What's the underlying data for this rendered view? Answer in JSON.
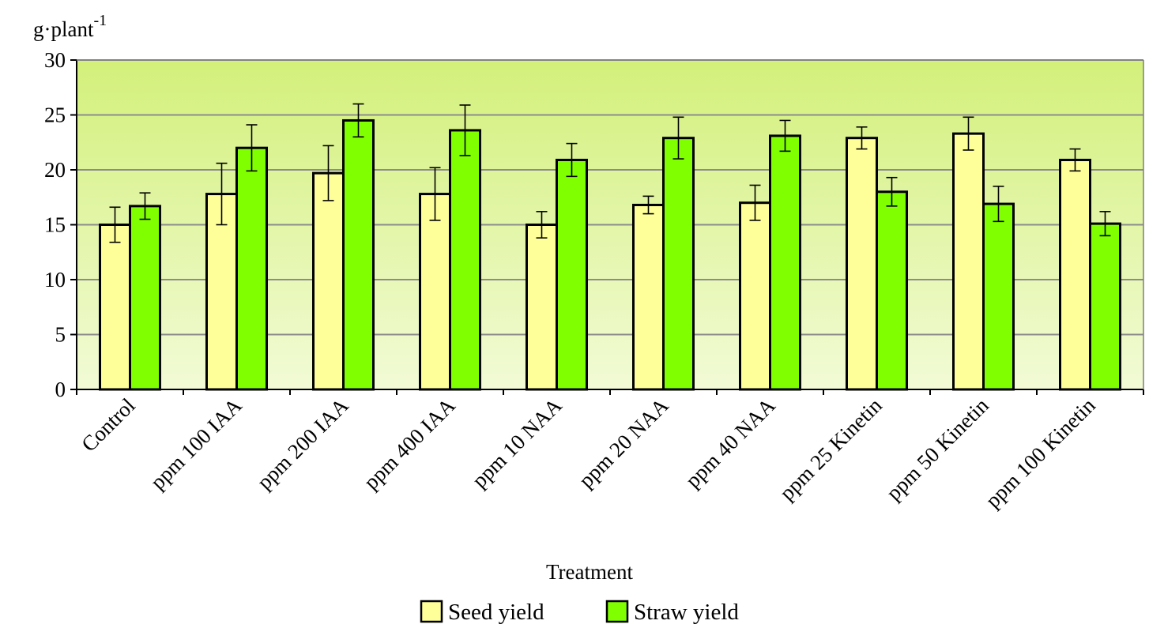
{
  "chart_data": {
    "type": "bar",
    "ylabel": "g·plant",
    "ylabel_sup": "-1",
    "xlabel": "Treatment",
    "ylim": [
      0,
      30
    ],
    "yticks": [
      0,
      5,
      10,
      15,
      20,
      25,
      30
    ],
    "grid": true,
    "legend": "bottom",
    "categories": [
      "Control",
      "ppm 100 IAA",
      "ppm 200 IAA",
      "ppm 400 IAA",
      "ppm 10 NAA",
      "ppm 20 NAA",
      "ppm 40 NAA",
      "ppm 25 Kinetin",
      "ppm 50 Kinetin",
      "ppm 100 Kinetin"
    ],
    "series": [
      {
        "name": "Seed yield",
        "color": "#ffff99",
        "values": [
          15.0,
          17.8,
          19.7,
          17.8,
          15.0,
          16.8,
          17.0,
          22.9,
          23.3,
          20.9
        ],
        "errors": [
          1.6,
          2.8,
          2.5,
          2.4,
          1.2,
          0.8,
          1.6,
          1.0,
          1.5,
          1.0
        ]
      },
      {
        "name": "Straw yield",
        "color": "#80ff00",
        "values": [
          16.7,
          22.0,
          24.5,
          23.6,
          20.9,
          22.9,
          23.1,
          18.0,
          16.9,
          15.1
        ],
        "errors": [
          1.2,
          2.1,
          1.5,
          2.3,
          1.5,
          1.9,
          1.4,
          1.3,
          1.6,
          1.1
        ]
      }
    ]
  }
}
